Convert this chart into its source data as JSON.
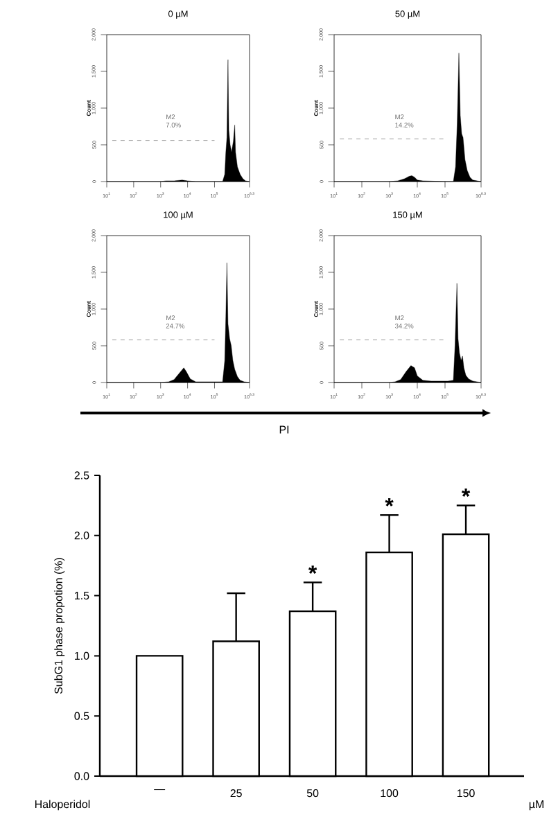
{
  "chart_data": [
    {
      "type": "area",
      "title": "0 µM",
      "ylabel": "Count",
      "log": "x",
      "marker": "none",
      "xlim": [
        10,
        1995262
      ],
      "ylim": [
        0,
        2000
      ],
      "xticks": [
        {
          "value": 10,
          "label": "10$^{1}$"
        },
        {
          "value": 100,
          "label": "10$^{2}$"
        },
        {
          "value": 1000,
          "label": "10$^{3}$"
        },
        {
          "value": 10000,
          "label": "10$^{4}$"
        },
        {
          "value": 100000,
          "label": "10$^{5}$"
        },
        {
          "value": 1995262,
          "label": "10$^{6.3}$"
        }
      ],
      "yticks": [
        0,
        500,
        {
          "value": 1000,
          "label": "1,000"
        },
        {
          "value": 1500,
          "label": "1,500"
        },
        {
          "value": 2000,
          "label": "2,000"
        }
      ],
      "series": [
        {
          "type": "area",
          "color": "#000000",
          "x": [
            10,
            1000,
            1585,
            3162,
            6310,
            10000,
            19953,
            100000,
            199526,
            239883,
            263027,
            288403,
            316228,
            338844,
            380189,
            426580,
            501187,
            562341,
            602560,
            707946,
            891251,
            1122018,
            1412538,
            1995262
          ],
          "values": [
            0,
            0,
            10,
            10,
            20,
            10,
            0,
            0,
            0,
            100,
            400,
            600,
            1660,
            700,
            500,
            400,
            550,
            770,
            400,
            200,
            100,
            40,
            10,
            0
          ]
        },
        {
          "type": "line",
          "line_style": "dashed",
          "color": "#999999",
          "x": [
            16,
            100000
          ],
          "values": [
            560,
            560
          ]
        }
      ],
      "annotations": [
        "M2",
        "7.0%"
      ]
    },
    {
      "type": "area",
      "title": "50 µM",
      "ylabel": "Count",
      "log": "x",
      "marker": "none",
      "xlim": [
        10,
        1995262
      ],
      "ylim": [
        0,
        2000
      ],
      "xticks": [
        {
          "value": 10,
          "label": "10$^{1}$"
        },
        {
          "value": 100,
          "label": "10$^{2}$"
        },
        {
          "value": 1000,
          "label": "10$^{3}$"
        },
        {
          "value": 10000,
          "label": "10$^{4}$"
        },
        {
          "value": 100000,
          "label": "10$^{5}$"
        },
        {
          "value": 1995262,
          "label": "10$^{6.3}$"
        }
      ],
      "yticks": [
        0,
        500,
        {
          "value": 1000,
          "label": "1,000"
        },
        {
          "value": 1500,
          "label": "1,500"
        },
        {
          "value": 2000,
          "label": "2,000"
        }
      ],
      "series": [
        {
          "type": "area",
          "color": "#000000",
          "x": [
            10,
            1000,
            1995,
            3548,
            5012,
            6310,
            7943,
            10000,
            15849,
            100000,
            199526,
            239883,
            275423,
            316228,
            354813,
            398107,
            446684,
            524807,
            630957,
            794328,
            1000000,
            1995262
          ],
          "values": [
            0,
            0,
            10,
            40,
            70,
            80,
            60,
            20,
            10,
            0,
            0,
            200,
            800,
            1750,
            900,
            650,
            600,
            300,
            150,
            60,
            20,
            0
          ]
        },
        {
          "type": "line",
          "line_style": "dashed",
          "color": "#999999",
          "x": [
            16,
            100000
          ],
          "values": [
            580,
            580
          ]
        }
      ],
      "annotations": [
        "M2",
        "14.2%"
      ]
    },
    {
      "type": "area",
      "title": "100 µM",
      "ylabel": "Count",
      "log": "x",
      "marker": "none",
      "xlim": [
        10,
        1995262
      ],
      "ylim": [
        0,
        2000
      ],
      "xticks": [
        {
          "value": 10,
          "label": "10$^{1}$"
        },
        {
          "value": 100,
          "label": "10$^{2}$"
        },
        {
          "value": 1000,
          "label": "10$^{3}$"
        },
        {
          "value": 10000,
          "label": "10$^{4}$"
        },
        {
          "value": 100000,
          "label": "10$^{5}$"
        },
        {
          "value": 1995262,
          "label": "10$^{6.3}$"
        }
      ],
      "yticks": [
        0,
        500,
        {
          "value": 1000,
          "label": "1,000"
        },
        {
          "value": 1500,
          "label": "1,500"
        },
        {
          "value": 2000,
          "label": "2,000"
        }
      ],
      "series": [
        {
          "type": "area",
          "color": "#000000",
          "x": [
            10,
            1000,
            1995,
            3162,
            5012,
            7244,
            8913,
            12589,
            19953,
            39811,
            100000,
            199526,
            239883,
            263027,
            288403,
            316228,
            363078,
            416869,
            478630,
            562341,
            707946,
            891251,
            1258925,
            1995262
          ],
          "values": [
            0,
            0,
            10,
            40,
            130,
            200,
            150,
            50,
            10,
            10,
            10,
            10,
            300,
            900,
            1630,
            800,
            600,
            500,
            300,
            180,
            80,
            30,
            10,
            0
          ]
        },
        {
          "type": "line",
          "line_style": "dashed",
          "color": "#999999",
          "x": [
            16,
            100000
          ],
          "values": [
            580,
            580
          ]
        }
      ],
      "annotations": [
        "M2",
        "24.7%"
      ]
    },
    {
      "type": "area",
      "title": "150 µM",
      "ylabel": "Count",
      "xlabel": "PI",
      "log": "x",
      "marker": "none",
      "xlim": [
        10,
        1995262
      ],
      "ylim": [
        0,
        2000
      ],
      "xticks": [
        {
          "value": 10,
          "label": "10$^{1}$"
        },
        {
          "value": 100,
          "label": "10$^{2}$"
        },
        {
          "value": 1000,
          "label": "10$^{3}$"
        },
        {
          "value": 10000,
          "label": "10$^{4}$"
        },
        {
          "value": 100000,
          "label": "10$^{5}$"
        },
        {
          "value": 1995262,
          "label": "10$^{6.3}$"
        }
      ],
      "yticks": [
        0,
        500,
        {
          "value": 1000,
          "label": "1,000"
        },
        {
          "value": 1500,
          "label": "1,500"
        },
        {
          "value": 2000,
          "label": "2,000"
        }
      ],
      "series": [
        {
          "type": "area",
          "color": "#000000",
          "x": [
            10,
            1000,
            1585,
            2512,
            3981,
            5888,
            7943,
            10000,
            15849,
            31623,
            63096,
            125893,
            199526,
            229087,
            251189,
            269153,
            295121,
            331131,
            380189,
            426580,
            478630,
            562341,
            707946,
            1000000,
            1995262
          ],
          "values": [
            0,
            0,
            10,
            40,
            150,
            230,
            200,
            90,
            30,
            20,
            20,
            20,
            30,
            500,
            1000,
            1350,
            600,
            400,
            300,
            360,
            200,
            100,
            50,
            20,
            0
          ]
        },
        {
          "type": "line",
          "line_style": "dashed",
          "color": "#999999",
          "x": [
            16,
            100000
          ],
          "values": [
            580,
            580
          ]
        }
      ],
      "annotations": [
        "M2",
        "34.2%"
      ]
    },
    {
      "type": "bar",
      "ylabel": "SubG1 phase propotion (%)",
      "categories": [
        "—",
        "25",
        "50",
        "100",
        "150"
      ],
      "values": [
        1.0,
        1.12,
        1.37,
        1.86,
        2.01
      ],
      "color": "#ffffff",
      "errors": [
        null,
        [
          1.12,
          1.52
        ],
        [
          1.37,
          1.61
        ],
        [
          1.86,
          2.17
        ],
        [
          2.01,
          2.25
        ]
      ],
      "ylim": [
        0,
        2.5
      ],
      "yticks": [
        {
          "value": 0,
          "label": "0.0"
        },
        {
          "value": 0.5,
          "label": "0.5"
        },
        {
          "value": 1,
          "label": "1.0"
        },
        {
          "value": 1.5,
          "label": "1.5"
        },
        {
          "value": 2,
          "label": "2.0"
        },
        {
          "value": 2.5,
          "label": "2.5"
        }
      ],
      "annotations": [
        "Haloperidol",
        "µM",
        {
          "text": "*",
          "x": "50",
          "y": 1.61
        },
        {
          "text": "*",
          "x": "100",
          "y": 2.17
        },
        {
          "text": "*",
          "x": "150",
          "y": 2.25
        }
      ]
    }
  ]
}
